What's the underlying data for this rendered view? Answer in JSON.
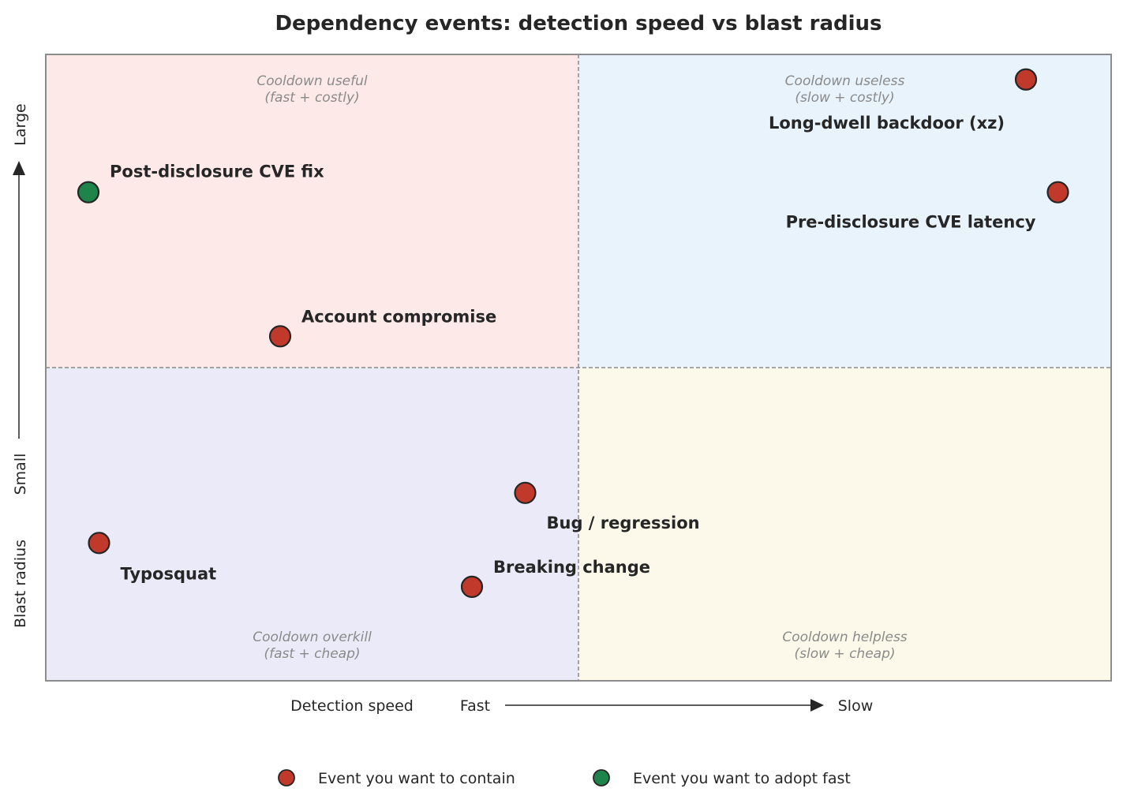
{
  "chart_data": {
    "type": "scatter",
    "title": "Dependency events: detection speed vs blast radius",
    "xlabel": "Detection speed",
    "x_low_label": "Fast",
    "x_high_label": "Slow",
    "ylabel": "Blast radius",
    "y_low_label": "Small",
    "y_high_label": "Large",
    "xlim": [
      0,
      10
    ],
    "ylim": [
      0,
      10
    ],
    "grid": false,
    "quadrant_split": {
      "x": 5,
      "y": 5
    },
    "quadrants": [
      {
        "id": "top-left",
        "line1": "Cooldown useful",
        "line2": "(fast + costly)",
        "color": "#fdeae8"
      },
      {
        "id": "top-right",
        "line1": "Cooldown useless",
        "line2": "(slow + costly)",
        "color": "#e8f3fc"
      },
      {
        "id": "bottom-left",
        "line1": "Cooldown overkill",
        "line2": "(fast + cheap)",
        "color": "#ebeaf8"
      },
      {
        "id": "bottom-right",
        "line1": "Cooldown helpless",
        "line2": "(slow + cheap)",
        "color": "#fcf9ea"
      }
    ],
    "series": [
      {
        "name": "Event you want to contain",
        "color": "#c0392b",
        "points": [
          {
            "label": "Long-dwell backdoor (xz)",
            "x": 9.2,
            "y": 9.6
          },
          {
            "label": "Pre-disclosure CVE latency",
            "x": 9.5,
            "y": 7.8
          },
          {
            "label": "Account compromise",
            "x": 2.2,
            "y": 5.5
          },
          {
            "label": "Bug / regression",
            "x": 4.5,
            "y": 3.0
          },
          {
            "label": "Typosquat",
            "x": 0.5,
            "y": 2.2
          },
          {
            "label": "Breaking change",
            "x": 4.0,
            "y": 1.5
          }
        ]
      },
      {
        "name": "Event you want to adopt fast",
        "color": "#1e8449",
        "points": [
          {
            "label": "Post-disclosure CVE fix",
            "x": 0.4,
            "y": 7.8
          }
        ]
      }
    ],
    "legend": "bottom-center"
  }
}
